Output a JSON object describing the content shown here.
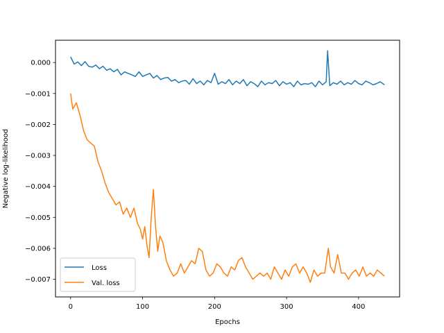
{
  "chart_data": {
    "type": "line",
    "xlabel": "Epochs",
    "ylabel": "Negative log-likelihood",
    "xlim": [
      -21,
      457
    ],
    "ylim": [
      -0.00757,
      0.00072
    ],
    "xticks": [
      0,
      100,
      200,
      300,
      400
    ],
    "xtick_labels": [
      "0",
      "100",
      "200",
      "300",
      "400"
    ],
    "yticks": [
      0.0,
      -0.001,
      -0.002,
      -0.003,
      -0.004,
      -0.005,
      -0.006,
      -0.007
    ],
    "ytick_labels": [
      "0.000",
      "−0.001",
      "−0.002",
      "−0.003",
      "−0.004",
      "−0.005",
      "−0.006",
      "−0.007"
    ],
    "grid": false,
    "legend_position": "lower-left",
    "series": [
      {
        "name": "Loss",
        "color": "#1f77b4",
        "x": [
          0,
          5,
          10,
          15,
          20,
          25,
          30,
          35,
          40,
          45,
          50,
          55,
          60,
          65,
          70,
          75,
          80,
          85,
          90,
          95,
          100,
          105,
          110,
          115,
          120,
          125,
          130,
          135,
          140,
          145,
          150,
          155,
          160,
          165,
          170,
          175,
          180,
          185,
          190,
          195,
          200,
          205,
          210,
          215,
          220,
          225,
          230,
          235,
          240,
          245,
          250,
          255,
          260,
          265,
          270,
          275,
          280,
          285,
          290,
          295,
          300,
          305,
          310,
          315,
          320,
          325,
          330,
          335,
          340,
          345,
          350,
          355,
          357,
          360,
          365,
          370,
          375,
          380,
          385,
          390,
          395,
          400,
          405,
          410,
          415,
          420,
          425,
          430,
          436
        ],
        "y": [
          0.00018,
          -5e-05,
          2e-05,
          -0.0001,
          3e-05,
          -0.00012,
          -0.00015,
          -8e-05,
          -0.0002,
          -0.00012,
          -0.00025,
          -0.0002,
          -0.0003,
          -0.00022,
          -0.0004,
          -0.0003,
          -0.00035,
          -0.0004,
          -0.00045,
          -0.0003,
          -0.00045,
          -0.0004,
          -0.00035,
          -0.0005,
          -0.00042,
          -0.00055,
          -0.0005,
          -0.00048,
          -0.0006,
          -0.00055,
          -0.00065,
          -0.0006,
          -0.00058,
          -0.0007,
          -0.00052,
          -0.00068,
          -0.0006,
          -0.00072,
          -0.00058,
          -0.00065,
          -0.00035,
          -0.0007,
          -0.00062,
          -0.00068,
          -0.00055,
          -0.00072,
          -0.0006,
          -0.00068,
          -0.00055,
          -0.00075,
          -0.00062,
          -0.00068,
          -0.00078,
          -0.0006,
          -0.00072,
          -0.00065,
          -0.00068,
          -0.00058,
          -0.00075,
          -0.00062,
          -0.0007,
          -0.00065,
          -0.00078,
          -0.0006,
          -0.00072,
          -0.00068,
          -0.0007,
          -0.00065,
          -0.00078,
          -0.0006,
          -0.00072,
          -0.00062,
          0.00038,
          -0.00075,
          -0.00065,
          -0.0007,
          -0.0006,
          -0.00072,
          -0.00065,
          -0.0007,
          -0.00058,
          -0.00068,
          -0.00072,
          -0.0006,
          -0.00065,
          -0.00072,
          -0.00068,
          -0.00062,
          -0.00072
        ]
      },
      {
        "name": "Val. loss",
        "color": "#ff7f0e",
        "x": [
          0,
          3,
          8,
          13,
          18,
          23,
          28,
          33,
          38,
          43,
          48,
          53,
          58,
          63,
          68,
          73,
          78,
          83,
          88,
          93,
          97,
          100,
          103,
          106,
          109,
          112,
          115,
          118,
          121,
          124,
          128,
          133,
          138,
          143,
          148,
          153,
          158,
          163,
          168,
          173,
          178,
          183,
          188,
          193,
          198,
          203,
          208,
          213,
          218,
          223,
          228,
          233,
          238,
          243,
          248,
          253,
          258,
          263,
          268,
          273,
          278,
          283,
          288,
          293,
          298,
          303,
          308,
          313,
          318,
          323,
          328,
          333,
          338,
          343,
          348,
          353,
          358,
          361,
          366,
          371,
          376,
          381,
          386,
          391,
          396,
          401,
          406,
          411,
          416,
          421,
          426,
          431,
          436
        ],
        "y": [
          -0.001,
          -0.0015,
          -0.0013,
          -0.0017,
          -0.0022,
          -0.0025,
          -0.0026,
          -0.0027,
          -0.0032,
          -0.0035,
          -0.0039,
          -0.0042,
          -0.0044,
          -0.0046,
          -0.0045,
          -0.0049,
          -0.0047,
          -0.005,
          -0.0047,
          -0.0052,
          -0.0054,
          -0.0057,
          -0.0053,
          -0.0059,
          -0.0063,
          -0.005,
          -0.0041,
          -0.0053,
          -0.0061,
          -0.0056,
          -0.0058,
          -0.0064,
          -0.0067,
          -0.0069,
          -0.0068,
          -0.0065,
          -0.0068,
          -0.0066,
          -0.0064,
          -0.0065,
          -0.006,
          -0.0061,
          -0.0067,
          -0.0069,
          -0.0068,
          -0.0065,
          -0.0066,
          -0.0068,
          -0.0069,
          -0.0066,
          -0.0067,
          -0.0064,
          -0.0063,
          -0.0066,
          -0.0068,
          -0.007,
          -0.0069,
          -0.0068,
          -0.0069,
          -0.0068,
          -0.007,
          -0.0066,
          -0.0068,
          -0.007,
          -0.0067,
          -0.0069,
          -0.0066,
          -0.0065,
          -0.0068,
          -0.0066,
          -0.0068,
          -0.0071,
          -0.0067,
          -0.0069,
          -0.0068,
          -0.0068,
          -0.006,
          -0.0066,
          -0.0068,
          -0.0062,
          -0.0068,
          -0.0068,
          -0.007,
          -0.0068,
          -0.0067,
          -0.0069,
          -0.0066,
          -0.0069,
          -0.0068,
          -0.0069,
          -0.0067,
          -0.0068,
          -0.0069
        ]
      }
    ]
  }
}
